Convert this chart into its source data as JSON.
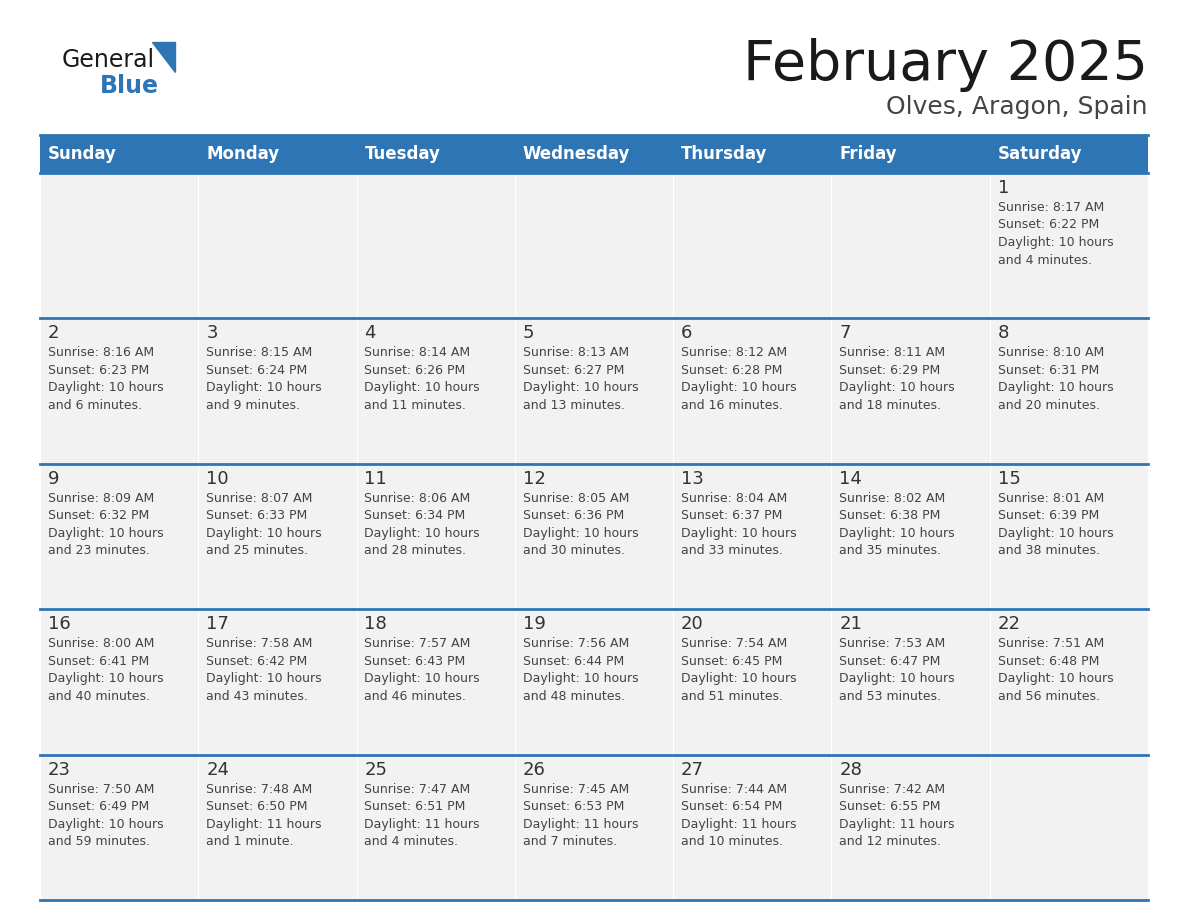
{
  "title": "February 2025",
  "subtitle": "Olves, Aragon, Spain",
  "header_color": "#2E75B6",
  "header_text_color": "#FFFFFF",
  "day_names": [
    "Sunday",
    "Monday",
    "Tuesday",
    "Wednesday",
    "Thursday",
    "Friday",
    "Saturday"
  ],
  "background_color": "#FFFFFF",
  "cell_bg": "#F2F2F2",
  "row_line_color": "#2E75B6",
  "text_color": "#444444",
  "day_number_color": "#333333",
  "calendar_data": [
    [
      null,
      null,
      null,
      null,
      null,
      null,
      {
        "day": 1,
        "sunrise": "8:17 AM",
        "sunset": "6:22 PM",
        "daylight_line1": "Daylight: 10 hours",
        "daylight_line2": "and 4 minutes."
      }
    ],
    [
      {
        "day": 2,
        "sunrise": "8:16 AM",
        "sunset": "6:23 PM",
        "daylight_line1": "Daylight: 10 hours",
        "daylight_line2": "and 6 minutes."
      },
      {
        "day": 3,
        "sunrise": "8:15 AM",
        "sunset": "6:24 PM",
        "daylight_line1": "Daylight: 10 hours",
        "daylight_line2": "and 9 minutes."
      },
      {
        "day": 4,
        "sunrise": "8:14 AM",
        "sunset": "6:26 PM",
        "daylight_line1": "Daylight: 10 hours",
        "daylight_line2": "and 11 minutes."
      },
      {
        "day": 5,
        "sunrise": "8:13 AM",
        "sunset": "6:27 PM",
        "daylight_line1": "Daylight: 10 hours",
        "daylight_line2": "and 13 minutes."
      },
      {
        "day": 6,
        "sunrise": "8:12 AM",
        "sunset": "6:28 PM",
        "daylight_line1": "Daylight: 10 hours",
        "daylight_line2": "and 16 minutes."
      },
      {
        "day": 7,
        "sunrise": "8:11 AM",
        "sunset": "6:29 PM",
        "daylight_line1": "Daylight: 10 hours",
        "daylight_line2": "and 18 minutes."
      },
      {
        "day": 8,
        "sunrise": "8:10 AM",
        "sunset": "6:31 PM",
        "daylight_line1": "Daylight: 10 hours",
        "daylight_line2": "and 20 minutes."
      }
    ],
    [
      {
        "day": 9,
        "sunrise": "8:09 AM",
        "sunset": "6:32 PM",
        "daylight_line1": "Daylight: 10 hours",
        "daylight_line2": "and 23 minutes."
      },
      {
        "day": 10,
        "sunrise": "8:07 AM",
        "sunset": "6:33 PM",
        "daylight_line1": "Daylight: 10 hours",
        "daylight_line2": "and 25 minutes."
      },
      {
        "day": 11,
        "sunrise": "8:06 AM",
        "sunset": "6:34 PM",
        "daylight_line1": "Daylight: 10 hours",
        "daylight_line2": "and 28 minutes."
      },
      {
        "day": 12,
        "sunrise": "8:05 AM",
        "sunset": "6:36 PM",
        "daylight_line1": "Daylight: 10 hours",
        "daylight_line2": "and 30 minutes."
      },
      {
        "day": 13,
        "sunrise": "8:04 AM",
        "sunset": "6:37 PM",
        "daylight_line1": "Daylight: 10 hours",
        "daylight_line2": "and 33 minutes."
      },
      {
        "day": 14,
        "sunrise": "8:02 AM",
        "sunset": "6:38 PM",
        "daylight_line1": "Daylight: 10 hours",
        "daylight_line2": "and 35 minutes."
      },
      {
        "day": 15,
        "sunrise": "8:01 AM",
        "sunset": "6:39 PM",
        "daylight_line1": "Daylight: 10 hours",
        "daylight_line2": "and 38 minutes."
      }
    ],
    [
      {
        "day": 16,
        "sunrise": "8:00 AM",
        "sunset": "6:41 PM",
        "daylight_line1": "Daylight: 10 hours",
        "daylight_line2": "and 40 minutes."
      },
      {
        "day": 17,
        "sunrise": "7:58 AM",
        "sunset": "6:42 PM",
        "daylight_line1": "Daylight: 10 hours",
        "daylight_line2": "and 43 minutes."
      },
      {
        "day": 18,
        "sunrise": "7:57 AM",
        "sunset": "6:43 PM",
        "daylight_line1": "Daylight: 10 hours",
        "daylight_line2": "and 46 minutes."
      },
      {
        "day": 19,
        "sunrise": "7:56 AM",
        "sunset": "6:44 PM",
        "daylight_line1": "Daylight: 10 hours",
        "daylight_line2": "and 48 minutes."
      },
      {
        "day": 20,
        "sunrise": "7:54 AM",
        "sunset": "6:45 PM",
        "daylight_line1": "Daylight: 10 hours",
        "daylight_line2": "and 51 minutes."
      },
      {
        "day": 21,
        "sunrise": "7:53 AM",
        "sunset": "6:47 PM",
        "daylight_line1": "Daylight: 10 hours",
        "daylight_line2": "and 53 minutes."
      },
      {
        "day": 22,
        "sunrise": "7:51 AM",
        "sunset": "6:48 PM",
        "daylight_line1": "Daylight: 10 hours",
        "daylight_line2": "and 56 minutes."
      }
    ],
    [
      {
        "day": 23,
        "sunrise": "7:50 AM",
        "sunset": "6:49 PM",
        "daylight_line1": "Daylight: 10 hours",
        "daylight_line2": "and 59 minutes."
      },
      {
        "day": 24,
        "sunrise": "7:48 AM",
        "sunset": "6:50 PM",
        "daylight_line1": "Daylight: 11 hours",
        "daylight_line2": "and 1 minute."
      },
      {
        "day": 25,
        "sunrise": "7:47 AM",
        "sunset": "6:51 PM",
        "daylight_line1": "Daylight: 11 hours",
        "daylight_line2": "and 4 minutes."
      },
      {
        "day": 26,
        "sunrise": "7:45 AM",
        "sunset": "6:53 PM",
        "daylight_line1": "Daylight: 11 hours",
        "daylight_line2": "and 7 minutes."
      },
      {
        "day": 27,
        "sunrise": "7:44 AM",
        "sunset": "6:54 PM",
        "daylight_line1": "Daylight: 11 hours",
        "daylight_line2": "and 10 minutes."
      },
      {
        "day": 28,
        "sunrise": "7:42 AM",
        "sunset": "6:55 PM",
        "daylight_line1": "Daylight: 11 hours",
        "daylight_line2": "and 12 minutes."
      },
      null
    ]
  ]
}
